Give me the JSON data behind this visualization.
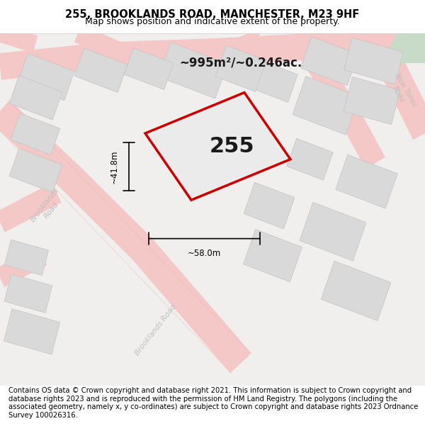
{
  "title_line1": "255, BROOKLANDS ROAD, MANCHESTER, M23 9HF",
  "title_line2": "Map shows position and indicative extent of the property.",
  "footer_text": "Contains OS data © Crown copyright and database right 2021. This information is subject to Crown copyright and database rights 2023 and is reproduced with the permission of HM Land Registry. The polygons (including the associated geometry, namely x, y co-ordinates) are subject to Crown copyright and database rights 2023 Ordnance Survey 100026316.",
  "area_text": "~995m²/~0.246ac.",
  "width_text": "~58.0m",
  "height_text": "~41.8m",
  "label_255": "255",
  "bg_color": "#f5f5f5",
  "map_bg": "#f0efee",
  "road_color": "#f5c8c8",
  "road_line_color": "#e8a0a0",
  "building_fill": "#d9d9d9",
  "building_edge": "#c0c0c0",
  "green_fill": "#d4e8d4",
  "title_bg": "#ffffff",
  "footer_bg": "#ffffff",
  "plot_outline_color": "#cc0000",
  "plot_fill_color": "#f0f0f0",
  "dimension_color": "#000000",
  "road_label_color": "#b0b0b0",
  "road_label_alpha": 0.7
}
